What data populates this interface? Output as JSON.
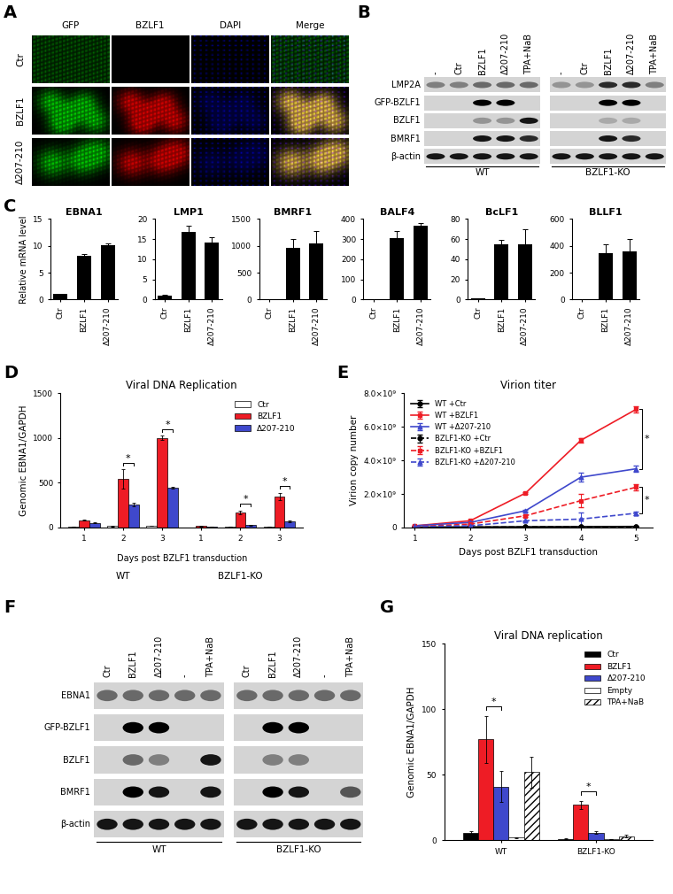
{
  "panel_labels": [
    "A",
    "B",
    "C",
    "D",
    "E",
    "F",
    "G"
  ],
  "panel_A": {
    "type": "image_grid",
    "columns": [
      "GFP",
      "BZLF1",
      "DAPI",
      "Merge"
    ],
    "rows": [
      "Ctr",
      "BZLF1",
      "Δ207-210"
    ]
  },
  "panel_B": {
    "type": "western_blot",
    "rows": [
      "LMP2A",
      "GFP-BZLF1",
      "BZLF1",
      "BMRF1",
      "β-actin"
    ],
    "groups": [
      {
        "name": "WT",
        "lanes": [
          "-",
          "Ctr",
          "BZLF1",
          "Δ207-210",
          "TPA+NaB"
        ]
      },
      {
        "name": "BZLF1-KO",
        "lanes": [
          "-",
          "Ctr",
          "BZLF1",
          "Δ207-210",
          "TPA+NaB"
        ]
      }
    ]
  },
  "panel_F": {
    "type": "western_blot",
    "rows": [
      "EBNA1",
      "GFP-BZLF1",
      "BZLF1",
      "BMRF1",
      "β-actin"
    ],
    "groups": [
      {
        "name": "WT",
        "lanes": [
          "Ctr",
          "BZLF1",
          "Δ207-210",
          "-",
          "TPA+NaB"
        ]
      },
      {
        "name": "BZLF1-KO",
        "lanes": [
          "Ctr",
          "BZLF1",
          "Δ207-210",
          "-",
          "TPA+NaB"
        ]
      }
    ]
  },
  "chart_data": [
    {
      "type": "bar",
      "title": "EBNA1",
      "ylabel": "Relative mRNA level",
      "categories": [
        "Ctr",
        "BZLF1",
        "Δ207-210"
      ],
      "values": [
        1,
        8.1,
        10.2
      ],
      "errors": [
        0.1,
        0.4,
        0.2
      ],
      "color": "#000000",
      "ylim": [
        0,
        15
      ],
      "yticks": [
        0,
        5,
        10,
        15
      ]
    },
    {
      "type": "bar",
      "title": "LMP1",
      "categories": [
        "Ctr",
        "BZLF1",
        "Δ207-210"
      ],
      "values": [
        1,
        16.8,
        14.2
      ],
      "errors": [
        0.1,
        1.6,
        1.3
      ],
      "color": "#000000",
      "ylim": [
        0,
        20
      ],
      "yticks": [
        0,
        5,
        10,
        15,
        20
      ]
    },
    {
      "type": "bar",
      "title": "BMRF1",
      "categories": [
        "Ctr",
        "BZLF1",
        "Δ207-210"
      ],
      "values": [
        1,
        970,
        1050
      ],
      "errors": [
        0,
        150,
        230
      ],
      "color": "#000000",
      "ylim": [
        0,
        1500
      ],
      "yticks": [
        0,
        500,
        1000,
        1500
      ]
    },
    {
      "type": "bar",
      "title": "BALF4",
      "categories": [
        "Ctr",
        "BZLF1",
        "Δ207-210"
      ],
      "values": [
        2,
        305,
        365
      ],
      "errors": [
        0,
        35,
        15
      ],
      "color": "#000000",
      "ylim": [
        0,
        400
      ],
      "yticks": [
        0,
        100,
        200,
        300,
        400
      ]
    },
    {
      "type": "bar",
      "title": "BcLF1",
      "categories": [
        "Ctr",
        "BZLF1",
        "Δ207-210"
      ],
      "values": [
        1,
        55,
        55
      ],
      "errors": [
        0,
        4,
        15
      ],
      "color": "#000000",
      "ylim": [
        0,
        80
      ],
      "yticks": [
        0,
        20,
        40,
        60,
        80
      ]
    },
    {
      "type": "bar",
      "title": "BLLF1",
      "categories": [
        "Ctr",
        "BZLF1",
        "Δ207-210"
      ],
      "values": [
        1,
        345,
        360
      ],
      "errors": [
        0,
        65,
        90
      ],
      "color": "#000000",
      "ylim": [
        0,
        600
      ],
      "yticks": [
        0,
        200,
        400,
        600
      ]
    },
    {
      "type": "bar",
      "title": "Viral DNA Replication",
      "ylabel": "Genomic EBNA1/GAPDH",
      "xlabel": "Days post BZLF1 transduction",
      "categories": [
        "1",
        "2",
        "3",
        "1",
        "2",
        "3"
      ],
      "category_groups": [
        "WT",
        "WT",
        "WT",
        "BZLF1-KO",
        "BZLF1-KO",
        "BZLF1-KO"
      ],
      "series": [
        {
          "name": "Ctr",
          "color": "#ffffff",
          "values": [
            10,
            15,
            20,
            2,
            5,
            5
          ],
          "errors": [
            2,
            3,
            3,
            1,
            1,
            1
          ]
        },
        {
          "name": "BZLF1",
          "color": "#ee1c25",
          "values": [
            80,
            540,
            1000,
            15,
            170,
            350
          ],
          "errors": [
            5,
            110,
            25,
            5,
            20,
            40
          ]
        },
        {
          "name": "Δ207-210",
          "color": "#3f48cc",
          "values": [
            50,
            255,
            445,
            10,
            25,
            70
          ],
          "errors": [
            5,
            20,
            10,
            2,
            5,
            10
          ]
        }
      ],
      "ylim": [
        0,
        1500
      ],
      "yticks": [
        0,
        500,
        1000,
        1500
      ],
      "legend": "upper right",
      "annotations": [
        {
          "text": "*",
          "group": "WT",
          "category": "2",
          "between": [
            "BZLF1",
            "Δ207-210"
          ]
        },
        {
          "text": "*",
          "group": "WT",
          "category": "3",
          "between": [
            "BZLF1",
            "Δ207-210"
          ]
        },
        {
          "text": "*",
          "group": "BZLF1-KO",
          "category": "2",
          "between": [
            "BZLF1",
            "Δ207-210"
          ]
        },
        {
          "text": "*",
          "group": "BZLF1-KO",
          "category": "3",
          "between": [
            "BZLF1",
            "Δ207-210"
          ]
        }
      ]
    },
    {
      "type": "line",
      "title": "Virion titer",
      "ylabel": "Virion copy number",
      "xlabel": "Days post BZLF1 transduction",
      "x": [
        1,
        2,
        3,
        4,
        5
      ],
      "xlim": [
        0.8,
        5.3
      ],
      "xticks": [
        1,
        2,
        3,
        4,
        5
      ],
      "ylim": [
        0,
        8000000000
      ],
      "yticks": [
        0,
        {
          "value": 2000000000,
          "label": "2.0×10⁹"
        },
        {
          "value": 4000000000,
          "label": "4.0×10⁹"
        },
        {
          "value": 6000000000,
          "label": "6.0×10⁹"
        },
        {
          "value": 8000000000,
          "label": "8.0×10⁹"
        }
      ],
      "legend": "upper left",
      "series": [
        {
          "name": "WT +Ctr",
          "color": "#000000",
          "marker": "circle",
          "line_style": "solid",
          "values": [
            20000000,
            30000000,
            40000000,
            50000000,
            60000000
          ],
          "errors": [
            10000000,
            10000000,
            10000000,
            10000000,
            10000000
          ]
        },
        {
          "name": "WT +BZLF1",
          "color": "#ee1c25",
          "marker": "square",
          "line_style": "solid",
          "values": [
            100000000,
            400000000,
            2050000000,
            5200000000,
            7050000000
          ],
          "errors": [
            20000000,
            30000000,
            40000000,
            150000000,
            200000000
          ]
        },
        {
          "name": "WT +Δ207-210",
          "color": "#3f48cc",
          "marker": "triangle",
          "line_style": "solid",
          "values": [
            100000000,
            300000000,
            1000000000,
            3000000000,
            3500000000
          ],
          "errors": [
            20000000,
            30000000,
            50000000,
            250000000,
            200000000
          ]
        },
        {
          "name": "BZLF1-KO +Ctr",
          "color": "#000000",
          "marker": "circle",
          "line_style": "dashed",
          "values": [
            10000000,
            20000000,
            30000000,
            40000000,
            50000000
          ],
          "errors": [
            10000000,
            10000000,
            10000000,
            10000000,
            10000000
          ]
        },
        {
          "name": "BZLF1-KO +BZLF1",
          "color": "#ee1c25",
          "marker": "square",
          "line_style": "dashed",
          "values": [
            50000000,
            200000000,
            700000000,
            1600000000,
            2400000000
          ],
          "errors": [
            10000000,
            30000000,
            50000000,
            400000000,
            200000000
          ]
        },
        {
          "name": "BZLF1-KO +Δ207-210",
          "color": "#3f48cc",
          "marker": "triangle",
          "line_style": "dashed",
          "values": [
            50000000,
            100000000,
            400000000,
            500000000,
            850000000
          ],
          "errors": [
            10000000,
            20000000,
            30000000,
            400000000,
            100000000
          ]
        }
      ],
      "annotations": [
        {
          "text": "*",
          "x": 5,
          "between": [
            "WT +BZLF1",
            "WT +Δ207-210"
          ]
        },
        {
          "text": "*",
          "x": 5,
          "between": [
            "BZLF1-KO +BZLF1",
            "BZLF1-KO +Δ207-210"
          ]
        }
      ]
    },
    {
      "type": "bar",
      "title": "Viral DNA replication",
      "ylabel": "Genomic EBNA1/GAPDH",
      "categories": [
        "WT",
        "BZLF1-KO"
      ],
      "series": [
        {
          "name": "Ctr",
          "color": "#000000",
          "values": [
            6,
            1
          ],
          "errors": [
            1,
            0.3
          ]
        },
        {
          "name": "BZLF1",
          "color": "#ee1c25",
          "values": [
            77,
            27
          ],
          "errors": [
            18,
            3
          ]
        },
        {
          "name": "Δ207-210",
          "color": "#3f48cc",
          "values": [
            41,
            6
          ],
          "errors": [
            12,
            1
          ]
        },
        {
          "name": "Empty",
          "color": "#ffffff",
          "values": [
            2,
            1
          ],
          "errors": [
            0.5,
            0.2
          ]
        },
        {
          "name": "TPA+NaB",
          "color": "#ffffff",
          "values": [
            52,
            3
          ],
          "errors": [
            12,
            1
          ]
        }
      ],
      "ylim": [
        0,
        150
      ],
      "yticks": [
        0,
        50,
        100,
        150
      ],
      "legend": "upper right",
      "annotations": [
        {
          "text": "*",
          "category": "WT",
          "between": [
            "BZLF1",
            "Δ207-210"
          ]
        },
        {
          "text": "*",
          "category": "BZLF1-KO",
          "between": [
            "BZLF1",
            "Δ207-210"
          ]
        }
      ]
    }
  ]
}
